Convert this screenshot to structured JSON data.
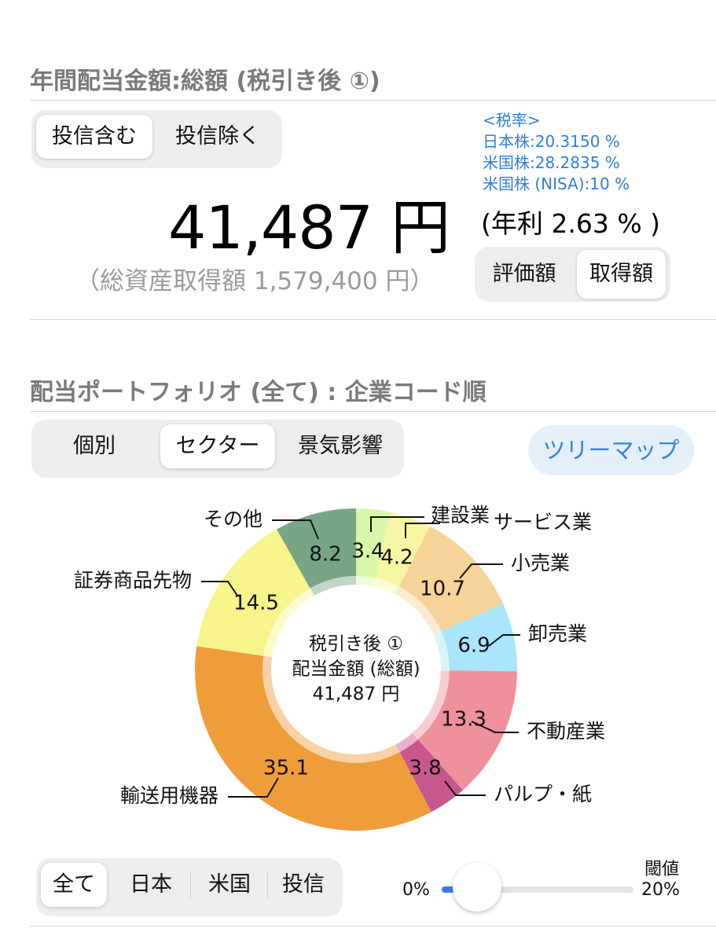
{
  "dividend_section": {
    "title": "年間配当金額:総額 (税引き後 ①)",
    "toggle": {
      "options": [
        "投信含む",
        "投信除く"
      ],
      "selected": "投信含む"
    },
    "tax_rates": [
      "<税率>",
      "日本株:20.3150 %",
      "米国株:28.2835 %",
      "米国株 (NISA):10 %"
    ],
    "amount": "41,487 円",
    "yield": "(年利 2.63 % )",
    "acquisition": "（総資産取得額 1,579,400 円）",
    "basis_toggle": {
      "options": [
        "評価額",
        "取得額"
      ],
      "selected": "取得額"
    }
  },
  "portfolio_section": {
    "title": "配当ポートフォリオ (全て) : 企業コード順",
    "view_tabs": {
      "options": [
        "個別",
        "セクター",
        "景気影響"
      ],
      "selected": "セクター"
    },
    "treemap_button": "ツリーマップ"
  },
  "chart_data": {
    "type": "pie",
    "donut": true,
    "center_label": [
      "税引き後 ①",
      "配当金額 (総額)",
      "41,487 円"
    ],
    "slices": [
      {
        "label": "建設業",
        "value": 3.4,
        "color": "#d8f7a8"
      },
      {
        "label": "サービス業",
        "value": 4.2,
        "color": "#f6f5a4"
      },
      {
        "label": "小売業",
        "value": 10.7,
        "color": "#f6d399"
      },
      {
        "label": "卸売業",
        "value": 6.9,
        "color": "#a9e5fb"
      },
      {
        "label": "不動産業",
        "value": 13.3,
        "color": "#ee919b"
      },
      {
        "label": "パルプ・紙",
        "value": 3.8,
        "color": "#c8578d"
      },
      {
        "label": "輸送用機器",
        "value": 35.1,
        "color": "#ef9c3a"
      },
      {
        "label": "証券商品先物",
        "value": 14.5,
        "color": "#f6f48a"
      },
      {
        "label": "その他",
        "value": 8.2,
        "color": "#78a585"
      }
    ]
  },
  "filter": {
    "region_tabs": {
      "options": [
        "全て",
        "日本",
        "米国",
        "投信"
      ],
      "selected": "全て"
    },
    "threshold_label": "閾値",
    "min_label": "0%",
    "max_label": "20%",
    "threshold_value": 0
  }
}
